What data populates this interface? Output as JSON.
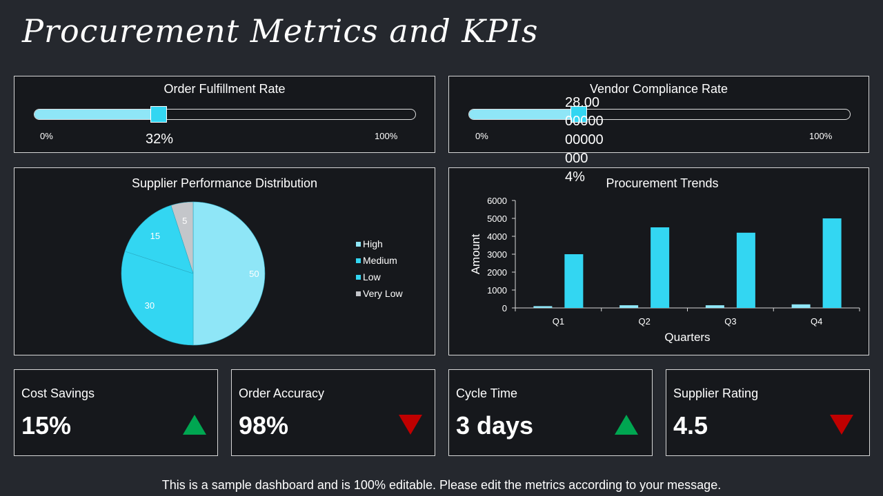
{
  "page": {
    "title": "Procurement Metrics and KPIs",
    "footer": "This is a sample dashboard and is 100% editable. Please edit the metrics according to your message."
  },
  "fulfillment": {
    "title": "Order Fulfillment Rate",
    "min_label": "0%",
    "max_label": "100%",
    "value_label": "32%",
    "value": 0.32
  },
  "compliance": {
    "title": "Vendor Compliance Rate",
    "min_label": "0%",
    "max_label": "100%",
    "value_label": "28.0000000000000004%",
    "value": 0.28
  },
  "supplier_chart": {
    "title": "Supplier Performance Distribution",
    "chart_data": {
      "type": "pie",
      "labels": [
        "High",
        "Medium",
        "Low",
        "Very Low"
      ],
      "values": [
        50,
        30,
        15,
        5
      ],
      "colors": [
        "#8fe6f7",
        "#33d6f2",
        "#33d6f2",
        "#c4c6ca"
      ],
      "legend": "right"
    }
  },
  "trends_chart": {
    "title": "Procurement Trends",
    "chart_data": {
      "type": "bar",
      "categories": [
        "Q1",
        "Q2",
        "Q3",
        "Q4"
      ],
      "series": [
        {
          "values": [
            100,
            150,
            150,
            200
          ],
          "color": "#8fe6f7"
        },
        {
          "values": [
            3000,
            4500,
            4200,
            5000
          ],
          "color": "#33d6f2"
        }
      ],
      "xlabel": "Quarters",
      "ylabel": "Amount",
      "ylim": [
        0,
        6000
      ],
      "yticks": [
        0,
        1000,
        2000,
        3000,
        4000,
        5000,
        6000
      ],
      "grid": false
    }
  },
  "kpis": [
    {
      "name": "Cost Savings",
      "value": "15%",
      "trend": "up",
      "icon": "arrow-up-icon"
    },
    {
      "name": "Order Accuracy",
      "value": "98%",
      "trend": "down",
      "icon": "arrow-down-icon"
    },
    {
      "name": "Cycle Time",
      "value": "3 days",
      "trend": "up",
      "icon": "arrow-up-icon"
    },
    {
      "name": "Supplier Rating",
      "value": "4.5",
      "trend": "down",
      "icon": "arrow-down-icon"
    }
  ],
  "colors": {
    "background": "#25282e",
    "panel": "#16181c",
    "accent": "#33d6f2",
    "accent_light": "#8fe6f7",
    "up": "#00a651",
    "down": "#c00000"
  }
}
